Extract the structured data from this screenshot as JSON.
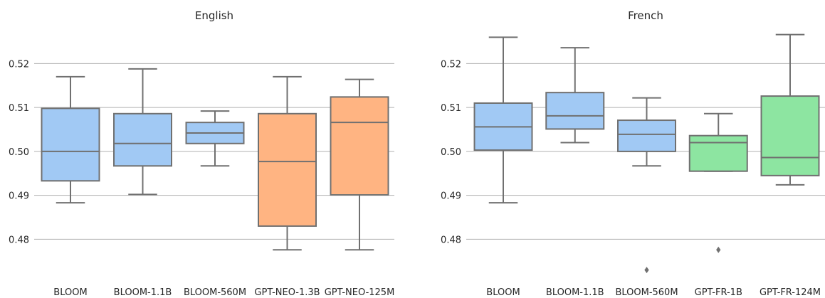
{
  "colors": {
    "bloom": "#a1c9f4",
    "gpt_neo": "#ffb482",
    "gpt_fr": "#8de5a1",
    "edge": "#707070",
    "grid": "#b0b0b0"
  },
  "chart_data": [
    {
      "type": "box",
      "title": "English",
      "ylim": [
        0.471,
        0.528
      ],
      "yticks": [
        0.48,
        0.49,
        0.5,
        0.51,
        0.52
      ],
      "ytick_labels": [
        "0.48",
        "0.49",
        "0.50",
        "0.51",
        "0.52"
      ],
      "grid": "horizontal",
      "categories": [
        "BLOOM",
        "BLOOM-1.1B",
        "BLOOM-560M",
        "GPT-NEO-1.3B",
        "GPT-NEO-125M"
      ],
      "boxes": [
        {
          "label": "BLOOM",
          "color": "bloom",
          "whislo": 0.4883,
          "q1": 0.4933,
          "med": 0.5,
          "q3": 0.5098,
          "whishi": 0.517,
          "fliers": []
        },
        {
          "label": "BLOOM-1.1B",
          "color": "bloom",
          "whislo": 0.4902,
          "q1": 0.4967,
          "med": 0.5018,
          "q3": 0.5086,
          "whishi": 0.5188,
          "fliers": []
        },
        {
          "label": "BLOOM-560M",
          "color": "bloom",
          "whislo": 0.4967,
          "q1": 0.5018,
          "med": 0.5042,
          "q3": 0.5066,
          "whishi": 0.5092,
          "fliers": []
        },
        {
          "label": "GPT-NEO-1.3B",
          "color": "gpt_neo",
          "whislo": 0.4776,
          "q1": 0.483,
          "med": 0.4977,
          "q3": 0.5086,
          "whishi": 0.517,
          "fliers": []
        },
        {
          "label": "GPT-NEO-125M",
          "color": "gpt_neo",
          "whislo": 0.4776,
          "q1": 0.4901,
          "med": 0.5066,
          "q3": 0.5124,
          "whishi": 0.5164,
          "fliers": []
        }
      ]
    },
    {
      "type": "box",
      "title": "French",
      "ylim": [
        0.471,
        0.528
      ],
      "yticks": [
        0.48,
        0.49,
        0.5,
        0.51,
        0.52
      ],
      "ytick_labels": [
        "0.48",
        "0.49",
        "0.50",
        "0.51",
        "0.52"
      ],
      "grid": "horizontal",
      "categories": [
        "BLOOM",
        "BLOOM-1.1B",
        "BLOOM-560M",
        "GPT-FR-1B",
        "GPT-FR-124M"
      ],
      "boxes": [
        {
          "label": "BLOOM",
          "color": "bloom",
          "whislo": 0.4883,
          "q1": 0.5003,
          "med": 0.5056,
          "q3": 0.511,
          "whishi": 0.526,
          "fliers": []
        },
        {
          "label": "BLOOM-1.1B",
          "color": "bloom",
          "whislo": 0.502,
          "q1": 0.5051,
          "med": 0.5081,
          "q3": 0.5134,
          "whishi": 0.5236,
          "fliers": []
        },
        {
          "label": "BLOOM-560M",
          "color": "bloom",
          "whislo": 0.4967,
          "q1": 0.5,
          "med": 0.5039,
          "q3": 0.5071,
          "whishi": 0.5122,
          "fliers": [
            0.473
          ]
        },
        {
          "label": "GPT-FR-1B",
          "color": "gpt_fr",
          "whislo": 0.4955,
          "q1": 0.4955,
          "med": 0.502,
          "q3": 0.5036,
          "whishi": 0.5086,
          "fliers": [
            0.4776
          ]
        },
        {
          "label": "GPT-FR-124M",
          "color": "gpt_fr",
          "whislo": 0.4924,
          "q1": 0.4945,
          "med": 0.4986,
          "q3": 0.5126,
          "whishi": 0.5266,
          "fliers": []
        }
      ]
    }
  ]
}
